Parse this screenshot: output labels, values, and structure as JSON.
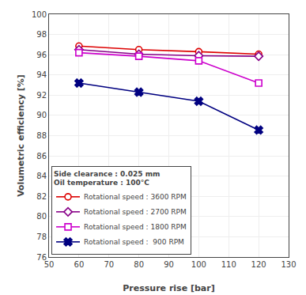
{
  "chart_data": {
    "type": "line",
    "xlabel": "Pressure rise [bar]",
    "ylabel": "Volumetric efficiency [%]",
    "x": [
      60,
      80,
      100,
      120
    ],
    "xlim": [
      50,
      130
    ],
    "ylim": [
      76,
      100
    ],
    "xticks": [
      50,
      60,
      70,
      80,
      90,
      100,
      110,
      120,
      130
    ],
    "yticks": [
      76,
      78,
      80,
      82,
      84,
      86,
      88,
      90,
      92,
      94,
      96,
      98,
      100
    ],
    "grid": true,
    "legend": "lower left",
    "legend_title": [
      "Side clearance : 0.025 mm",
      "Oil temperature : 100°C"
    ],
    "series": [
      {
        "name": "Rotational speed : 3600 RPM",
        "color": "#dd0000",
        "marker": "circle",
        "values": [
          96.85,
          96.5,
          96.3,
          96.05
        ]
      },
      {
        "name": "Rotational speed : 2700 RPM",
        "color": "#880088",
        "marker": "diamond",
        "values": [
          96.5,
          96.05,
          95.9,
          95.85
        ]
      },
      {
        "name": "Rotational speed : 1800 RPM",
        "color": "#cc00cc",
        "marker": "square",
        "values": [
          96.2,
          95.85,
          95.4,
          93.2
        ]
      },
      {
        "name": "Rotational speed :  900 RPM",
        "color": "#000080",
        "marker": "x",
        "values": [
          93.2,
          92.3,
          91.4,
          88.55
        ]
      }
    ]
  }
}
